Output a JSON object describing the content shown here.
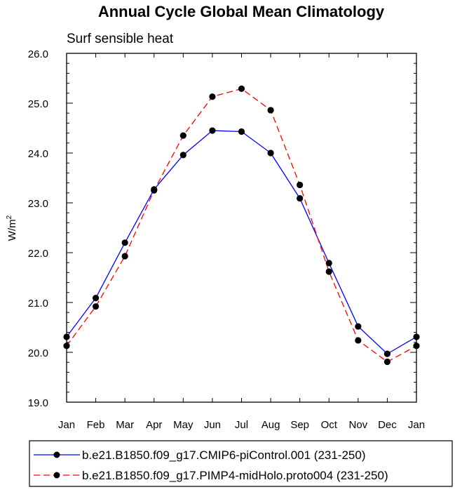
{
  "chart_data": {
    "type": "line",
    "title": "Annual Cycle Global Mean Climatology",
    "subtitle": "Surf sensible heat",
    "ylabel": "W/m",
    "ylabel_superscript": "2",
    "xlabel": "",
    "categories": [
      "Jan",
      "Feb",
      "Mar",
      "Apr",
      "May",
      "Jun",
      "Jul",
      "Aug",
      "Sep",
      "Oct",
      "Nov",
      "Dec",
      "Jan"
    ],
    "ylim": [
      19.0,
      26.0
    ],
    "yticks": [
      "19.0",
      "20.0",
      "21.0",
      "22.0",
      "23.0",
      "24.0",
      "25.0",
      "26.0"
    ],
    "grid": false,
    "legend_position": "bottom",
    "series": [
      {
        "name": "b.e21.B1850.f09_g17.CMIP6-piControl.001 (231-250)",
        "color": "#0000ff",
        "dash": "solid",
        "values": [
          20.31,
          21.09,
          22.2,
          23.27,
          23.96,
          24.45,
          24.43,
          24.0,
          23.09,
          21.79,
          20.52,
          19.97,
          20.31
        ]
      },
      {
        "name": "b.e21.B1850.f09_g17.PIMP4-midHolo.proto004 (231-250)",
        "color": "#ff0000",
        "dash": "dashed",
        "values": [
          20.13,
          20.92,
          21.93,
          23.25,
          24.35,
          25.13,
          25.29,
          24.86,
          23.36,
          21.62,
          20.24,
          19.81,
          20.13
        ]
      }
    ]
  }
}
